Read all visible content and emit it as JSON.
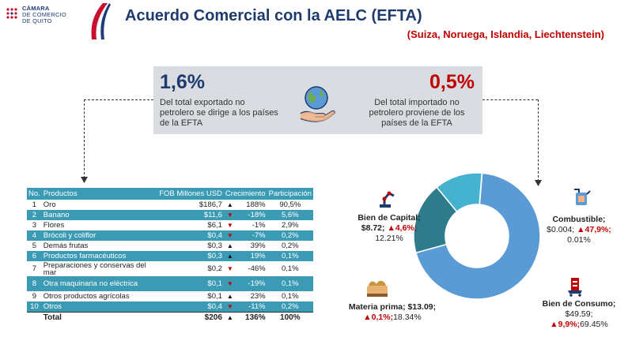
{
  "logo": {
    "line1": "CÁMARA",
    "line2": "DE COMERCIO",
    "line3": "DE QUITO"
  },
  "header": {
    "title": "Acuerdo Comercial con la AELC (EFTA)",
    "subtitle": "(Suiza, Noruega, Islandia, Liechtenstein)"
  },
  "summary": {
    "export_pct": "1,6%",
    "export_desc": "Del total exportado no petrolero se dirige a los países de la EFTA",
    "import_pct": "0,5%",
    "import_desc": "Del total importado no petrolero proviene de los países de la EFTA"
  },
  "table": {
    "headers": [
      "No.",
      "Productos",
      "FOB Millones USD",
      "Crecimiento",
      "Participación"
    ],
    "rows": [
      {
        "no": "1",
        "product": "Oro",
        "fob": "$186,7",
        "dir": "up",
        "growth": "188%",
        "share": "90,5%"
      },
      {
        "no": "2",
        "product": "Banano",
        "fob": "$11,6",
        "dir": "down",
        "growth": "-18%",
        "share": "5,6%"
      },
      {
        "no": "3",
        "product": "Flores",
        "fob": "$6,1",
        "dir": "down",
        "growth": "-1%",
        "share": "2,9%"
      },
      {
        "no": "4",
        "product": "Brócoli y coliflor",
        "fob": "$0,4",
        "dir": "down",
        "growth": "-7%",
        "share": "0,2%"
      },
      {
        "no": "5",
        "product": "Demás frutas",
        "fob": "$0,3",
        "dir": "up",
        "growth": "39%",
        "share": "0,2%"
      },
      {
        "no": "6",
        "product": "Productos farmacéuticos",
        "fob": "$0,3",
        "dir": "up",
        "growth": "19%",
        "share": "0,1%"
      },
      {
        "no": "7",
        "product": "Preparaciones y conservas del mar",
        "fob": "$0,2",
        "dir": "down",
        "growth": "-46%",
        "share": "0,1%"
      },
      {
        "no": "8",
        "product": "Otra maquinaria no eléctrica",
        "fob": "$0,1",
        "dir": "down",
        "growth": "-19%",
        "share": "0,1%"
      },
      {
        "no": "9",
        "product": "Otros productos agrícolas",
        "fob": "$0,1",
        "dir": "up",
        "growth": "23%",
        "share": "0,1%"
      },
      {
        "no": "10",
        "product": "Otros",
        "fob": "$0,4",
        "dir": "down",
        "growth": "-11%",
        "share": "0,2%"
      }
    ],
    "total": {
      "label": "Total",
      "fob": "$206",
      "dir": "up",
      "growth": "136%",
      "share": "100%"
    }
  },
  "chart_data": {
    "type": "pie",
    "categories": [
      "Bien de Consumo",
      "Materia prima",
      "Bien de Capital",
      "Combustible"
    ],
    "values": [
      69.45,
      18.34,
      12.21,
      0.01
    ],
    "colors": [
      "#5b9bd5",
      "#2e7b8c",
      "#45b3cf",
      "#9dc3e6"
    ]
  },
  "labels": {
    "capital": {
      "name": "Bien de Capital;",
      "value": "$8.72;",
      "growth": "▲4,6%;",
      "share": "12.21%"
    },
    "combustible": {
      "name": "Combustible;",
      "value": "$0.004;",
      "growth": "▲47,9%;",
      "share": "0.01%"
    },
    "materia": {
      "name": "Materia prima; $13.09;",
      "growth": "▲0,1%;",
      "share": "18.34%"
    },
    "consumo": {
      "name": "Bien de Consumo;",
      "value": "$49.59;",
      "growth": "▲9,9%;",
      "share": "69.45%"
    }
  }
}
